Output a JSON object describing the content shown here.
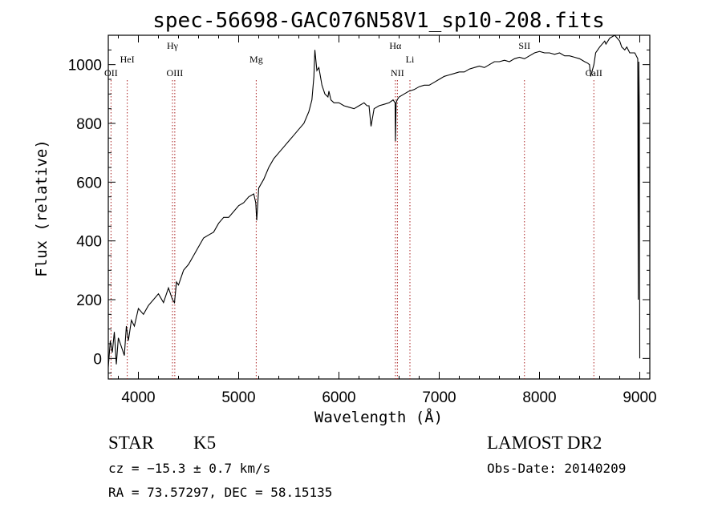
{
  "chart_data": {
    "type": "line",
    "title": "spec-56698-GAC076N58V1_sp10-208.fits",
    "xlabel": "Wavelength (Å)",
    "ylabel": "Flux (relative)",
    "xlim": [
      3700,
      9100
    ],
    "ylim": [
      -70,
      1100
    ],
    "xticks": [
      4000,
      5000,
      6000,
      7000,
      8000,
      9000
    ],
    "yticks": [
      0,
      200,
      400,
      600,
      800,
      1000
    ],
    "grid": false,
    "series": [
      {
        "color": "#000000",
        "x": [
          3700,
          3720,
          3740,
          3760,
          3780,
          3800,
          3830,
          3860,
          3880,
          3900,
          3930,
          3960,
          4000,
          4050,
          4100,
          4150,
          4200,
          4250,
          4300,
          4340,
          4360,
          4380,
          4400,
          4450,
          4500,
          4550,
          4600,
          4650,
          4700,
          4750,
          4800,
          4850,
          4900,
          4950,
          5000,
          5050,
          5100,
          5150,
          5170,
          5180,
          5200,
          5250,
          5300,
          5350,
          5400,
          5450,
          5500,
          5550,
          5600,
          5650,
          5700,
          5730,
          5750,
          5760,
          5780,
          5800,
          5830,
          5860,
          5890,
          5900,
          5920,
          5950,
          6000,
          6050,
          6100,
          6150,
          6200,
          6250,
          6280,
          6300,
          6320,
          6350,
          6400,
          6450,
          6500,
          6540,
          6560,
          6563,
          6570,
          6580,
          6600,
          6650,
          6700,
          6750,
          6800,
          6850,
          6900,
          6950,
          7000,
          7050,
          7100,
          7150,
          7200,
          7250,
          7300,
          7350,
          7400,
          7450,
          7500,
          7550,
          7600,
          7650,
          7700,
          7750,
          7800,
          7850,
          7900,
          7950,
          8000,
          8050,
          8100,
          8150,
          8200,
          8250,
          8300,
          8350,
          8400,
          8450,
          8480,
          8498,
          8510,
          8542,
          8560,
          8600,
          8650,
          8662,
          8700,
          8750,
          8800,
          8820,
          8850,
          8870,
          8900,
          8950,
          8980,
          8985,
          8990,
          8995,
          9000
        ],
        "y": [
          -30,
          60,
          20,
          90,
          -20,
          70,
          40,
          10,
          110,
          60,
          130,
          110,
          170,
          150,
          180,
          200,
          220,
          190,
          240,
          200,
          190,
          260,
          250,
          300,
          320,
          350,
          380,
          410,
          420,
          430,
          460,
          480,
          480,
          500,
          520,
          530,
          550,
          560,
          530,
          470,
          580,
          610,
          650,
          680,
          700,
          720,
          740,
          760,
          780,
          800,
          840,
          880,
          960,
          1050,
          980,
          990,
          930,
          900,
          890,
          910,
          880,
          870,
          870,
          860,
          855,
          850,
          860,
          870,
          860,
          860,
          790,
          850,
          860,
          865,
          870,
          880,
          870,
          740,
          870,
          880,
          890,
          900,
          910,
          915,
          925,
          930,
          930,
          940,
          950,
          960,
          965,
          970,
          975,
          975,
          985,
          990,
          995,
          990,
          1000,
          1010,
          1010,
          1015,
          1010,
          1020,
          1025,
          1020,
          1030,
          1040,
          1045,
          1040,
          1040,
          1035,
          1040,
          1030,
          1030,
          1025,
          1020,
          1010,
          1005,
          1000,
          960,
          1000,
          1040,
          1060,
          1080,
          1070,
          1090,
          1100,
          1080,
          1060,
          1050,
          1060,
          1040,
          1040,
          1020,
          200,
          1010,
          860,
          0
        ]
      }
    ],
    "lines": [
      {
        "label": "OII",
        "x": 3727,
        "row": 1
      },
      {
        "label": "HeI",
        "x": 3889,
        "row": 0
      },
      {
        "label": "Hγ",
        "x": 4340,
        "row": -1
      },
      {
        "label": "OIII",
        "x": 4363,
        "row": 1
      },
      {
        "label": "Mg",
        "x": 5175,
        "row": 0
      },
      {
        "label": "Hα",
        "x": 6563,
        "row": -1
      },
      {
        "label": "NII",
        "x": 6583,
        "row": 1
      },
      {
        "label": "Li",
        "x": 6708,
        "row": 0
      },
      {
        "label": "SII",
        "x": 7850,
        "row": -1
      },
      {
        "label": "CaII",
        "x": 8542,
        "row": 1
      }
    ],
    "line_color": "#aa2222"
  },
  "info": {
    "object_class": "STAR",
    "subclass": "K5",
    "survey": "LAMOST DR2",
    "redshift": "cz = −15.3 ± 0.7 km/s",
    "obs_date": "Obs-Date: 20140209",
    "coords": "RA =  73.57297, DEC =  58.15135"
  }
}
